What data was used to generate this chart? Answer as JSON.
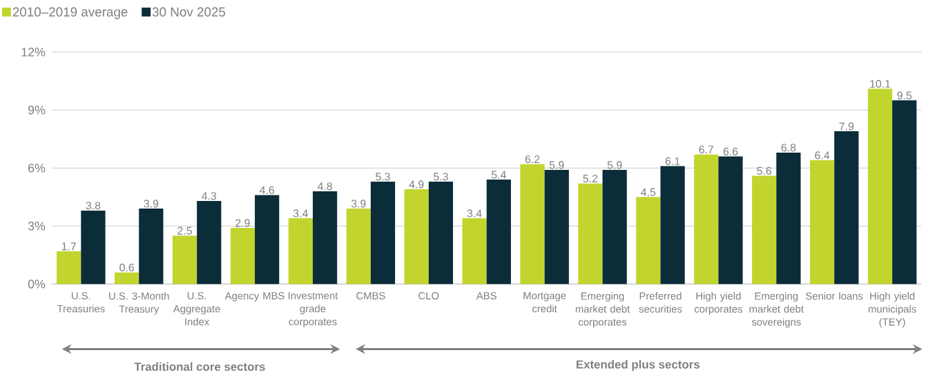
{
  "chart_data": {
    "type": "bar",
    "categories": [
      "U.S. Treasuries",
      "U.S. 3-Month Treasury",
      "U.S. Aggregate Index",
      "Agency MBS",
      "Investment grade corporates",
      "CMBS",
      "CLO",
      "ABS",
      "Mortgage credit",
      "Emerging market debt corporates",
      "Preferred securities",
      "High yield corporates",
      "Emerging market debt sovereigns",
      "Senior loans",
      "High yield municipals (TEY)"
    ],
    "series": [
      {
        "name": "2010–2019 average",
        "color": "#c2d52e",
        "values": [
          1.7,
          0.6,
          2.5,
          2.9,
          3.4,
          3.9,
          4.9,
          3.4,
          6.2,
          5.2,
          4.5,
          6.7,
          5.6,
          6.4,
          10.1
        ]
      },
      {
        "name": "30 Nov 2025",
        "color": "#0b2d3a",
        "values": [
          3.8,
          3.9,
          4.3,
          4.6,
          4.8,
          5.3,
          5.3,
          5.4,
          5.9,
          5.9,
          6.1,
          6.6,
          6.8,
          7.9,
          9.5
        ]
      }
    ],
    "ylim": [
      0,
      12
    ],
    "yticks": [
      {
        "value": 0,
        "label": "0%"
      },
      {
        "value": 3,
        "label": "3%"
      },
      {
        "value": 6,
        "label": "6%"
      },
      {
        "value": 9,
        "label": "9%"
      },
      {
        "value": 12,
        "label": "12%"
      }
    ],
    "grid": "y",
    "legend": "top left",
    "data_labels": true,
    "annotations": [
      "Traditional core sectors",
      "Extended plus sectors"
    ]
  }
}
